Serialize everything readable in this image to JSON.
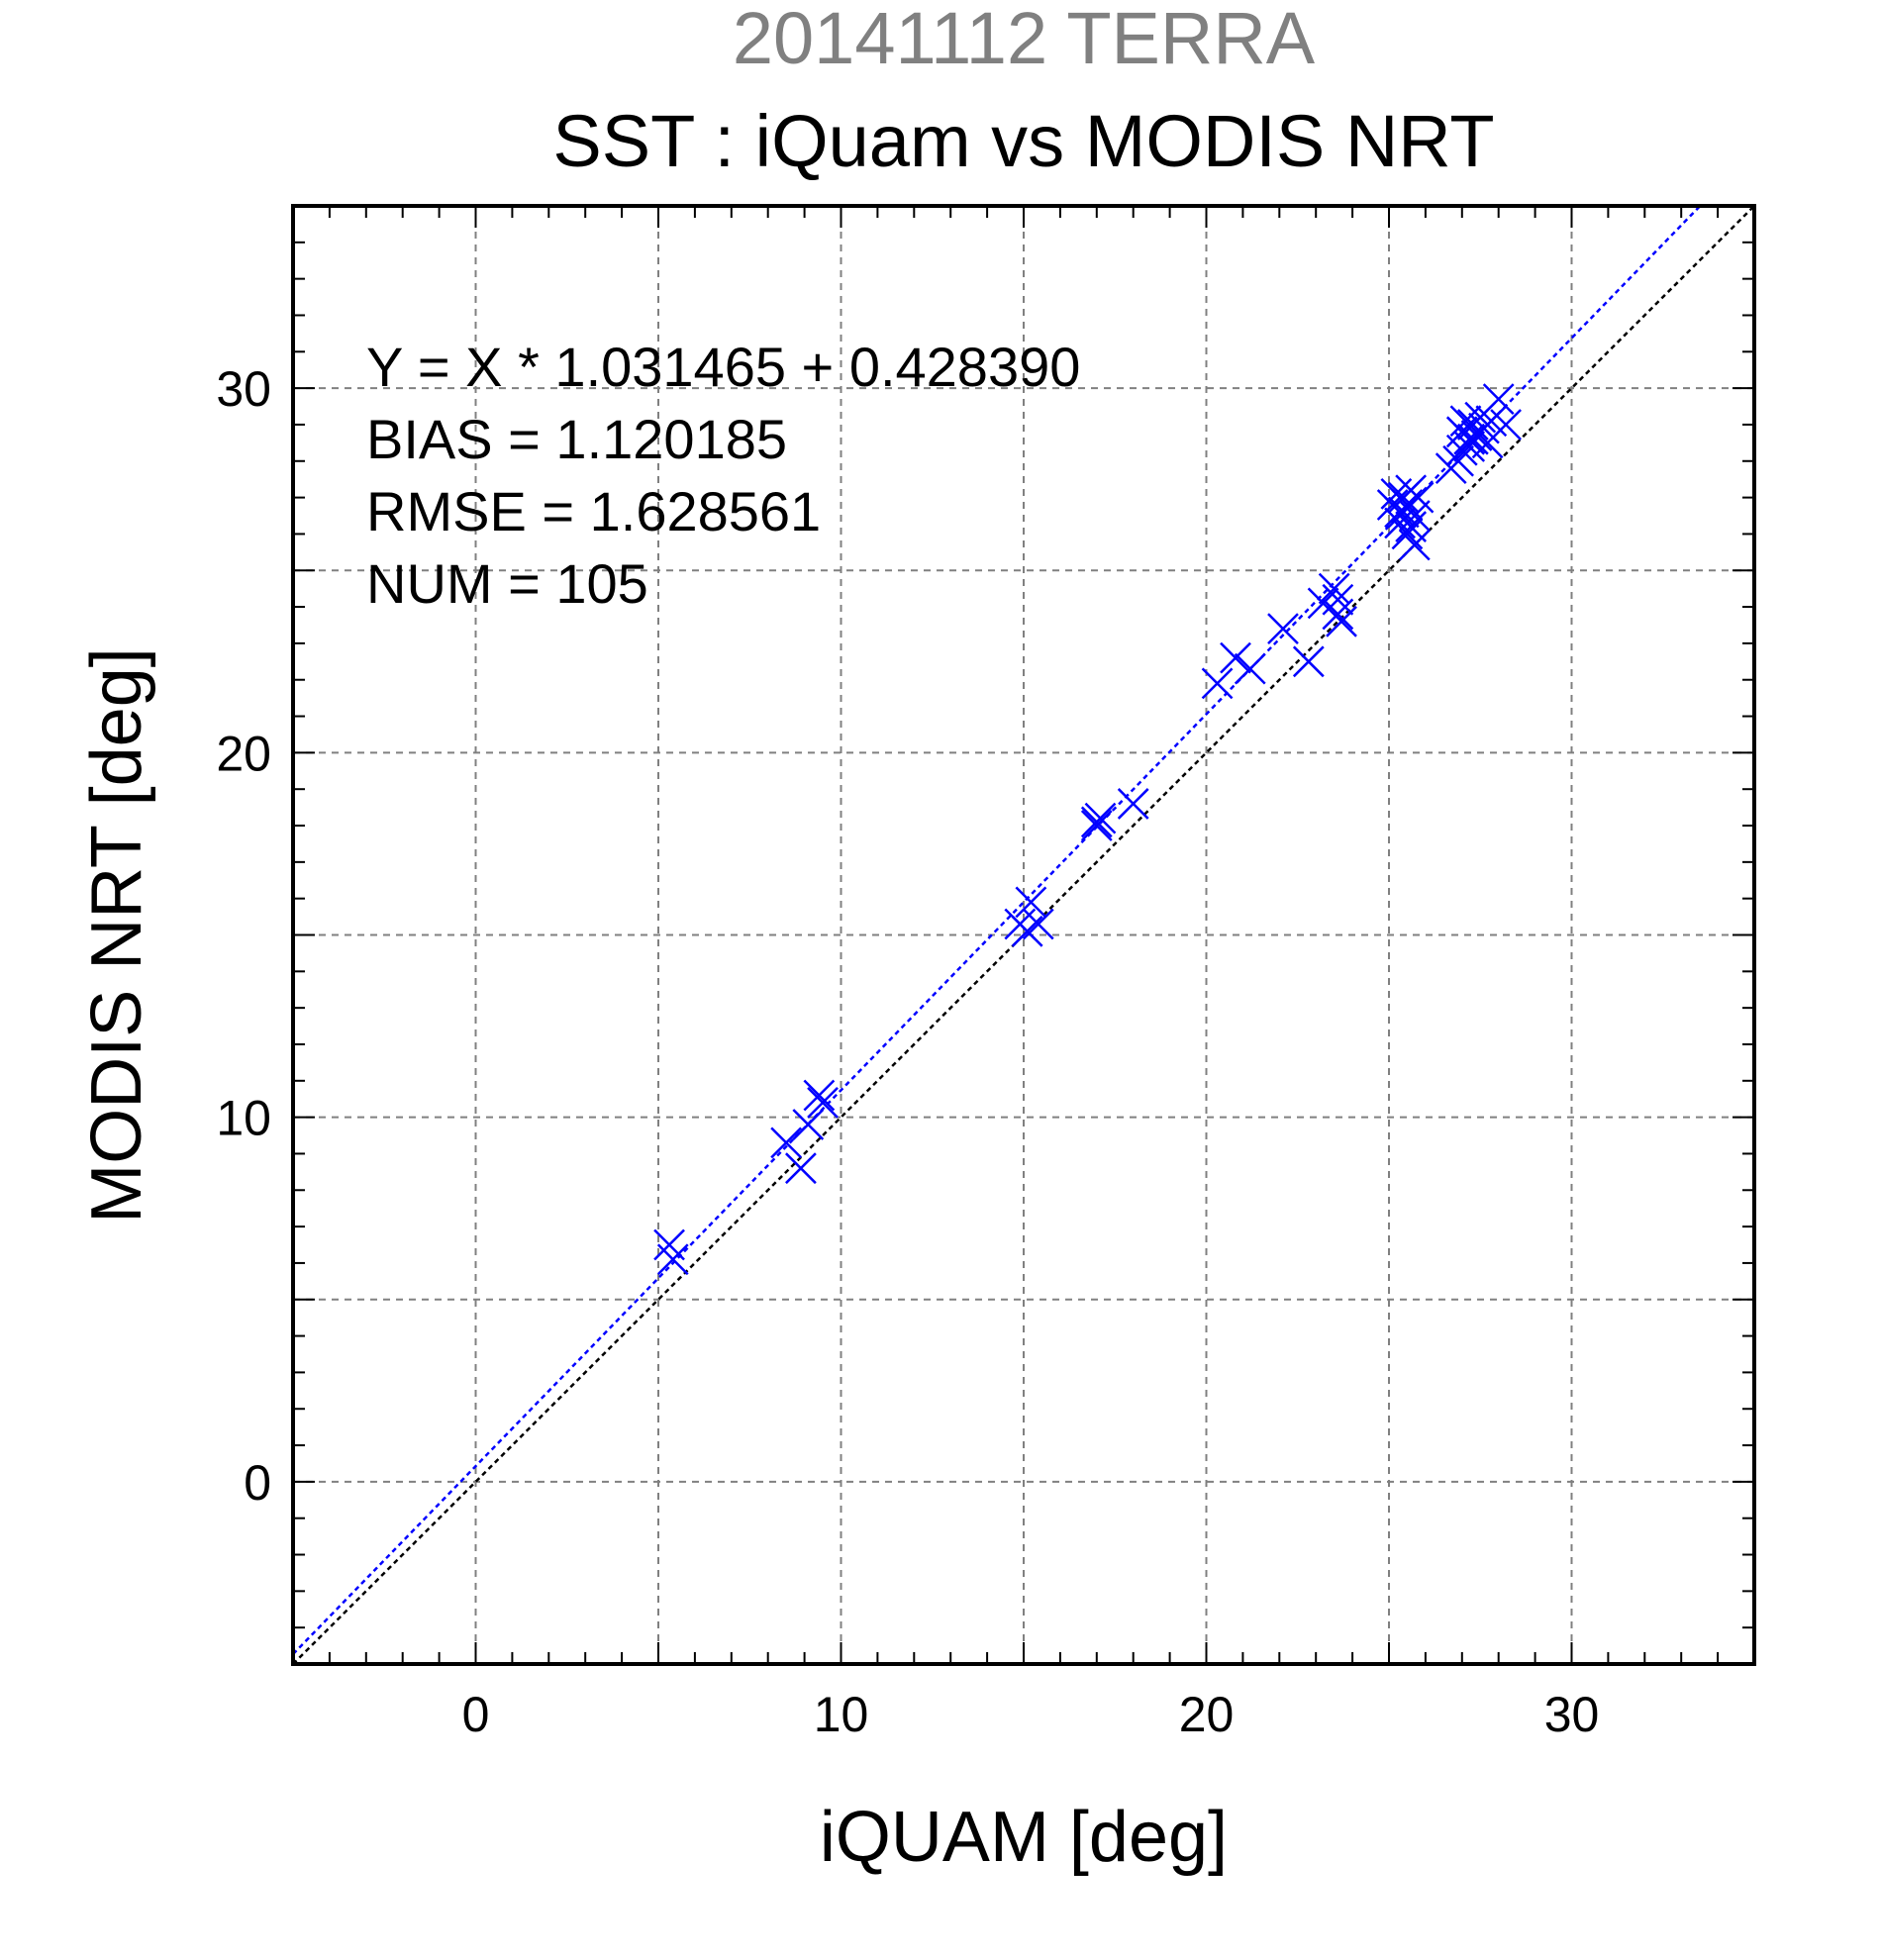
{
  "chart_data": {
    "type": "scatter",
    "supertitle": "20141112 TERRA",
    "title": "SST : iQuam vs MODIS NRT",
    "xlabel": "iQUAM [deg]",
    "ylabel": "MODIS NRT [deg]",
    "xlim": [
      -5,
      35
    ],
    "ylim": [
      -5,
      35
    ],
    "xticks": [
      0,
      10,
      20,
      30
    ],
    "yticks": [
      0,
      10,
      20,
      30
    ],
    "grid": true,
    "stats": [
      "Y = X * 1.031465 + 0.428390",
      "BIAS = 1.120185",
      "RMSE = 1.628561",
      "NUM = 105"
    ],
    "regression": {
      "slope": 1.031465,
      "intercept": 0.42839
    },
    "colors": {
      "points": "#0000ff",
      "regression": "#0000ff",
      "identity": "#000000",
      "grid": "#808080",
      "supertitle": "#808080"
    },
    "series": [
      {
        "x": [
          5.3,
          5.4,
          8.5,
          8.9,
          9.1,
          9.4,
          9.5,
          14.9,
          15.1,
          15.2,
          15.4,
          17.0,
          17.1,
          17.0,
          18.0,
          20.3,
          20.8,
          21.2,
          22.1,
          22.8,
          23.2,
          23.5,
          23.6,
          23.7,
          23.6,
          25.1,
          25.2,
          25.3,
          25.4,
          25.5,
          25.6,
          25.7,
          25.8,
          25.3,
          25.5,
          25.6,
          25.4,
          25.7,
          26.7,
          26.9,
          27.0,
          27.1,
          27.2,
          27.3,
          27.4,
          27.5,
          27.6,
          27.7,
          27.8,
          28.0,
          28.2,
          27.0,
          27.2,
          27.3
        ],
        "y": [
          6.5,
          6.1,
          9.3,
          8.6,
          9.8,
          10.6,
          10.4,
          15.3,
          15.1,
          15.9,
          15.3,
          18.1,
          18.2,
          18.0,
          18.6,
          21.9,
          22.6,
          22.3,
          23.4,
          22.5,
          24.1,
          24.5,
          23.8,
          23.6,
          24.2,
          26.8,
          27.1,
          26.6,
          27.0,
          26.8,
          27.2,
          26.5,
          27.0,
          26.3,
          26.0,
          26.2,
          26.6,
          25.7,
          27.8,
          28.0,
          28.3,
          29.1,
          28.6,
          29.0,
          28.7,
          29.2,
          28.9,
          28.5,
          29.1,
          29.7,
          29.0,
          28.8,
          28.4,
          28.6
        ]
      }
    ]
  }
}
